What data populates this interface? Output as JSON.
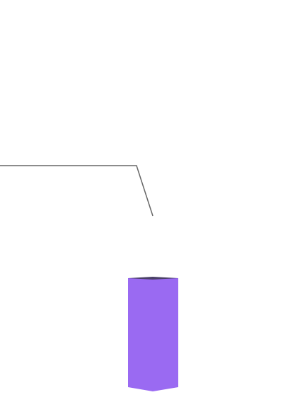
{
  "scene": {
    "background": "#ffffff",
    "leader_line_color": "#666666",
    "box_front_color": "#9a6af2",
    "box_top_color": "#4a4068"
  }
}
